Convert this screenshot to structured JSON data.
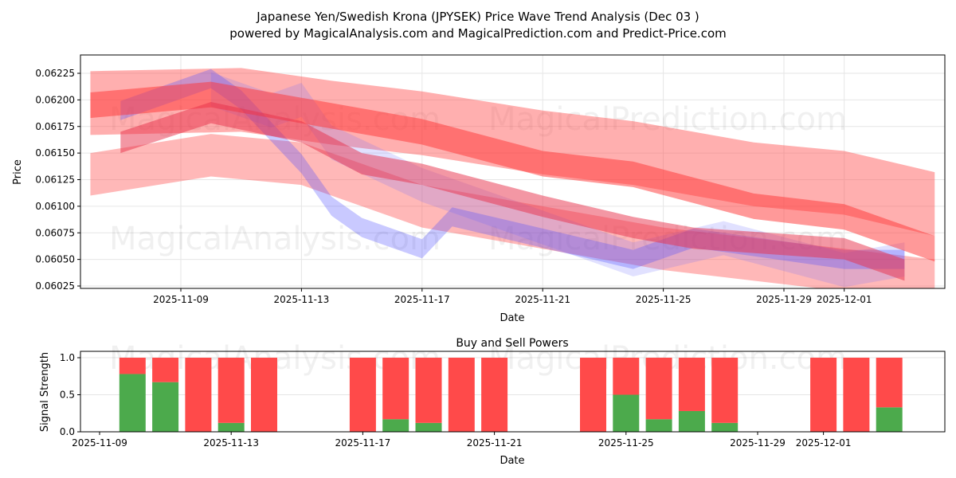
{
  "chart_data": [
    {
      "type": "area",
      "title": "Japanese Yen/Swedish Krona (JPYSEK) Price Wave Trend Analysis (Dec 03 )",
      "subtitle": "powered by MagicalAnalysis.com and MagicalPrediction.com and Predict-Price.com",
      "xlabel": "Date",
      "ylabel": "Price",
      "xlim": [
        "2025-11-05",
        "2025-12-04"
      ],
      "ylim": [
        0.06023,
        0.06242
      ],
      "grid": true,
      "xticks": [
        "2025-11-09",
        "2025-11-13",
        "2025-11-17",
        "2025-11-21",
        "2025-11-25",
        "2025-11-29",
        "2025-12-01"
      ],
      "yticks": [
        "0.06025",
        "0.06050",
        "0.06075",
        "0.06100",
        "0.06125",
        "0.06150",
        "0.06175",
        "0.06200",
        "0.06225"
      ],
      "watermarks": [
        "MagicalAnalysis.com",
        "MagicalPrediction.com"
      ],
      "bands": [
        {
          "name": "red-wide-upper",
          "color": "#ff4d4d",
          "alpha": 0.45,
          "half": 0.0003,
          "points": [
            [
              "2025-11-06",
              0.06197
            ],
            [
              "2025-11-11",
              0.062
            ],
            [
              "2025-11-14",
              0.06188
            ],
            [
              "2025-11-17",
              0.06178
            ],
            [
              "2025-11-21",
              0.0616
            ],
            [
              "2025-11-24",
              0.0615
            ],
            [
              "2025-11-28",
              0.0613
            ],
            [
              "2025-12-01",
              0.06122
            ],
            [
              "2025-12-04",
              0.06102
            ]
          ]
        },
        {
          "name": "red-lower",
          "color": "#ff4d4d",
          "alpha": 0.4,
          "half": 0.0002,
          "points": [
            [
              "2025-11-06",
              0.0613
            ],
            [
              "2025-11-10",
              0.06148
            ],
            [
              "2025-11-13",
              0.0614
            ],
            [
              "2025-11-17",
              0.061
            ],
            [
              "2025-11-21",
              0.0608
            ],
            [
              "2025-11-25",
              0.0606
            ],
            [
              "2025-11-28",
              0.0605
            ],
            [
              "2025-12-01",
              0.0604
            ],
            [
              "2025-12-04",
              0.0603
            ]
          ]
        },
        {
          "name": "blue-wide",
          "color": "#6b6bff",
          "alpha": 0.2,
          "half": 0.00016,
          "points": [
            [
              "2025-11-10",
              0.0621
            ],
            [
              "2025-11-12",
              0.0619
            ],
            [
              "2025-11-13",
              0.062
            ],
            [
              "2025-11-14",
              0.0616
            ],
            [
              "2025-11-17",
              0.0612
            ],
            [
              "2025-11-21",
              0.0608
            ],
            [
              "2025-11-24",
              0.0605
            ],
            [
              "2025-11-27",
              0.0607
            ],
            [
              "2025-12-01",
              0.0604
            ],
            [
              "2025-12-03",
              0.0605
            ]
          ]
        },
        {
          "name": "blue-main",
          "color": "#4d4dff",
          "alpha": 0.3,
          "half": 9e-05,
          "points": [
            [
              "2025-11-07",
              0.0619
            ],
            [
              "2025-11-10",
              0.0622
            ],
            [
              "2025-11-11",
              0.062
            ],
            [
              "2025-11-13",
              0.0614
            ],
            [
              "2025-11-14",
              0.061
            ],
            [
              "2025-11-15",
              0.0608
            ],
            [
              "2025-11-17",
              0.0606
            ],
            [
              "2025-11-18",
              0.0609
            ],
            [
              "2025-11-21",
              0.0607
            ],
            [
              "2025-11-24",
              0.0605
            ],
            [
              "2025-11-26",
              0.0607
            ],
            [
              "2025-12-01",
              0.0605
            ],
            [
              "2025-12-03",
              0.0605
            ]
          ]
        },
        {
          "name": "red-mid-upper",
          "color": "#ff3333",
          "alpha": 0.5,
          "half": 0.00012,
          "points": [
            [
              "2025-11-06",
              0.06195
            ],
            [
              "2025-11-10",
              0.06205
            ],
            [
              "2025-11-13",
              0.0619
            ],
            [
              "2025-11-17",
              0.0617
            ],
            [
              "2025-11-21",
              0.0614
            ],
            [
              "2025-11-24",
              0.0613
            ],
            [
              "2025-11-28",
              0.061
            ],
            [
              "2025-12-01",
              0.0609
            ],
            [
              "2025-12-04",
              0.0606
            ]
          ]
        },
        {
          "name": "red-mid-lower",
          "color": "#e8304a",
          "alpha": 0.5,
          "half": 0.0001,
          "points": [
            [
              "2025-11-07",
              0.0616
            ],
            [
              "2025-11-10",
              0.06188
            ],
            [
              "2025-11-13",
              0.0617
            ],
            [
              "2025-11-15",
              0.0614
            ],
            [
              "2025-11-17",
              0.0613
            ],
            [
              "2025-11-21",
              0.061
            ],
            [
              "2025-11-24",
              0.0608
            ],
            [
              "2025-11-26",
              0.0607
            ],
            [
              "2025-12-01",
              0.0606
            ],
            [
              "2025-12-03",
              0.0604
            ]
          ]
        }
      ]
    },
    {
      "type": "bar",
      "title": "Buy and Sell Powers",
      "xlabel": "Date",
      "ylabel": "Signal Strength",
      "ylim": [
        0,
        1.05
      ],
      "yticks": [
        "0.0",
        "0.5",
        "1.0"
      ],
      "xticks": [
        "2025-11-09",
        "2025-11-13",
        "2025-11-17",
        "2025-11-21",
        "2025-11-25",
        "2025-11-29",
        "2025-12-01"
      ],
      "colors": {
        "buy": "#4caa4c",
        "sell": "#ff4a4a"
      },
      "categories": [
        "2025-11-10",
        "2025-11-11",
        "2025-11-12",
        "2025-11-13",
        "2025-11-14",
        "2025-11-17",
        "2025-11-18",
        "2025-11-19",
        "2025-11-20",
        "2025-11-21",
        "2025-11-24",
        "2025-11-25",
        "2025-11-26",
        "2025-11-27",
        "2025-11-28",
        "2025-12-01",
        "2025-12-02",
        "2025-12-03"
      ],
      "series": [
        {
          "name": "Buy",
          "values": [
            0.78,
            0.67,
            0,
            0.12,
            0,
            0,
            0.17,
            0.12,
            0,
            0,
            0,
            0.5,
            0.17,
            0.28,
            0.12,
            0,
            0,
            0.33
          ]
        },
        {
          "name": "Sell",
          "values": [
            0.22,
            0.33,
            1,
            0.88,
            1,
            1,
            0.83,
            0.88,
            1,
            1,
            1,
            0.5,
            0.83,
            0.72,
            0.88,
            1,
            1,
            0.67
          ]
        }
      ]
    }
  ]
}
